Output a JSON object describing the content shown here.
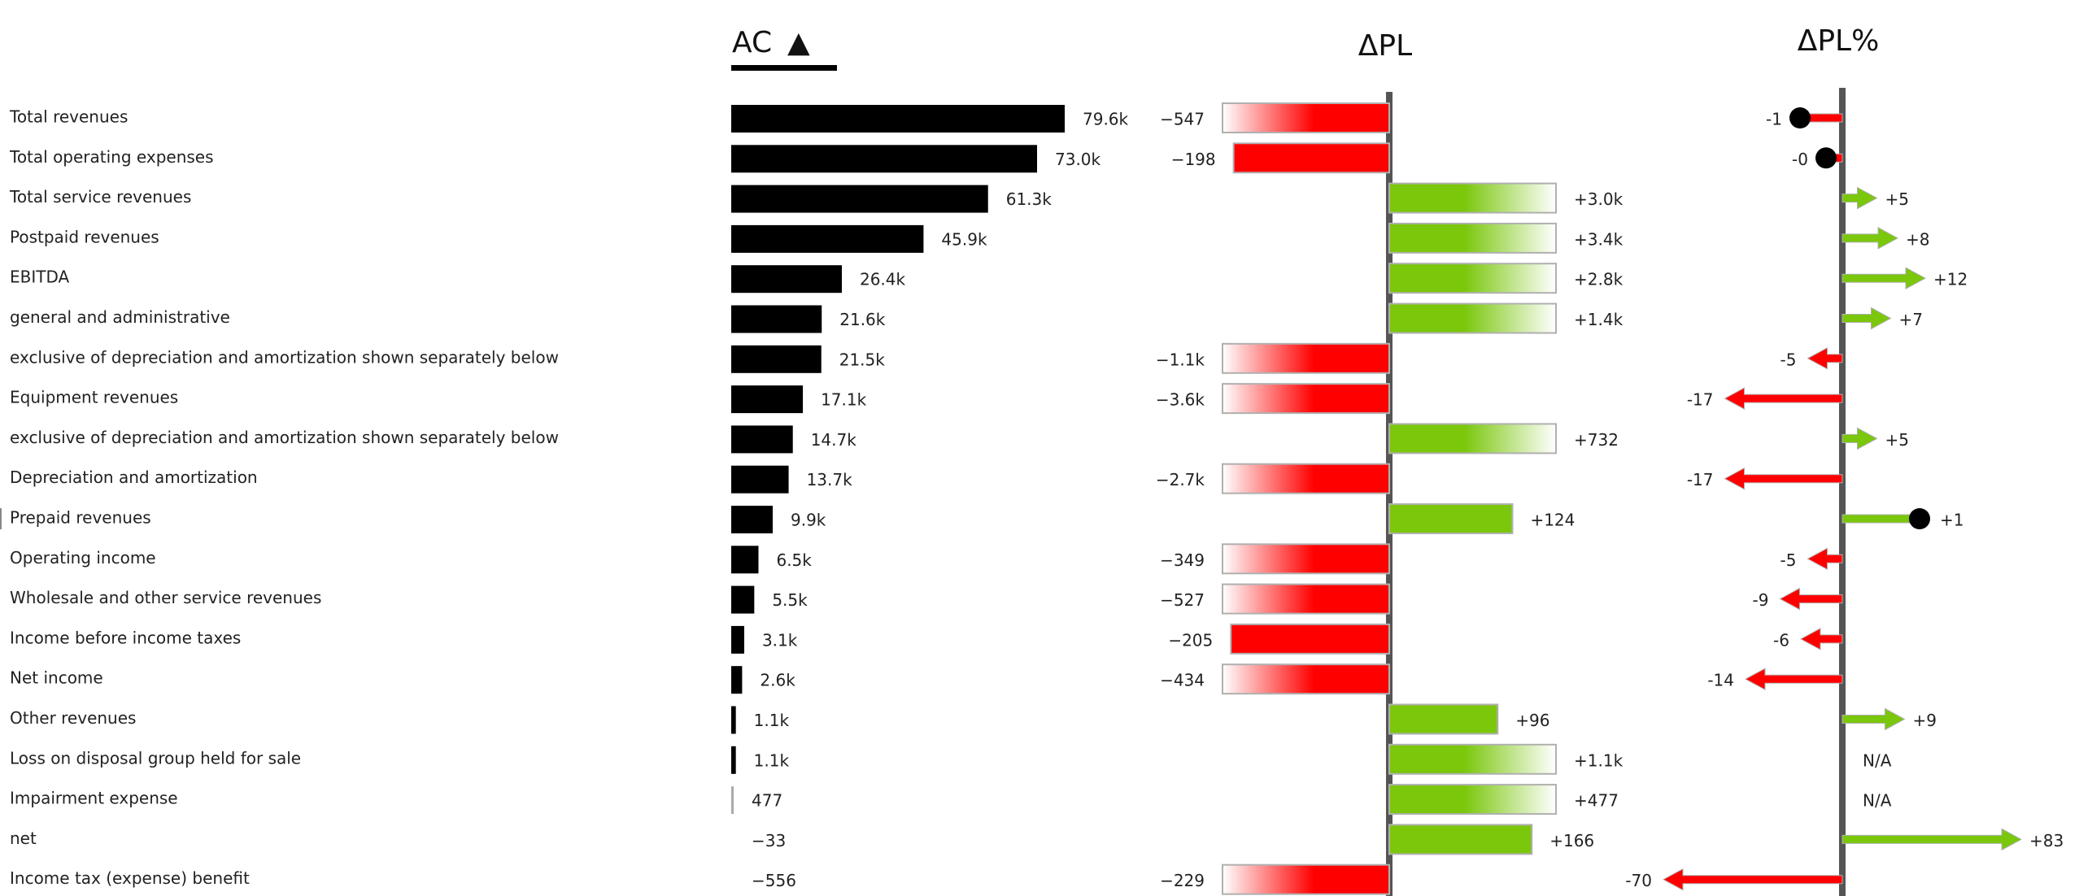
{
  "chart_data": {
    "type": "bar",
    "columns": [
      "AC",
      "ΔPL",
      "ΔPL%"
    ],
    "categories": [
      "Total revenues",
      "Total operating expenses",
      "Total service revenues",
      "Postpaid revenues",
      "EBITDA",
      "general and administrative",
      "exclusive of depreciation and amortization shown separately below",
      "Equipment revenues",
      "exclusive of depreciation and amortization shown separately below",
      "Depreciation and amortization",
      "Prepaid revenues",
      "Operating income",
      "Wholesale and other service revenues",
      "Income before income taxes",
      "Net income",
      "Other revenues",
      "Loss on disposal group held for sale",
      "Impairment expense",
      "net",
      "Income tax (expense) benefit"
    ],
    "series": [
      {
        "name": "AC",
        "values": [
          79600,
          73000,
          61300,
          45900,
          26400,
          21600,
          21500,
          17100,
          14700,
          13700,
          9900,
          6500,
          5500,
          3100,
          2600,
          1100,
          1100,
          477,
          -33,
          -556
        ],
        "labels": [
          "79.6k",
          "73.0k",
          "61.3k",
          "45.9k",
          "26.4k",
          "21.6k",
          "21.5k",
          "17.1k",
          "14.7k",
          "13.7k",
          "9.9k",
          "6.5k",
          "5.5k",
          "3.1k",
          "2.6k",
          "1.1k",
          "1.1k",
          "477",
          "−33",
          "−556"
        ]
      },
      {
        "name": "ΔPL",
        "values": [
          -547,
          -198,
          3000,
          3400,
          2800,
          1400,
          -1100,
          -3600,
          732,
          -2700,
          124,
          -349,
          -527,
          -205,
          -434,
          96,
          1100,
          477,
          166,
          -229
        ],
        "labels": [
          "−547",
          "−198",
          "+3.0k",
          "+3.4k",
          "+2.8k",
          "+1.4k",
          "−1.1k",
          "−3.6k",
          "+732",
          "−2.7k",
          "+124",
          "−349",
          "−527",
          "−205",
          "−434",
          "+96",
          "+1.1k",
          "+477",
          "+166",
          "−229"
        ],
        "truncated": [
          true,
          false,
          true,
          true,
          true,
          true,
          true,
          true,
          true,
          true,
          false,
          true,
          true,
          false,
          true,
          false,
          true,
          true,
          false,
          true
        ]
      },
      {
        "name": "ΔPL%",
        "values": [
          -1,
          -0.3,
          5,
          8,
          12,
          7,
          -5,
          -17,
          5,
          -17,
          1,
          -5,
          -9,
          -6,
          -14,
          9,
          null,
          null,
          83,
          -70
        ],
        "labels": [
          "-1",
          "-0",
          "+5",
          "+8",
          "+12",
          "+7",
          "-5",
          "-17",
          "+5",
          "-17",
          "+1",
          "-5",
          "-9",
          "-6",
          "-14",
          "+9",
          "N/A",
          "N/A",
          "+83",
          "-70"
        ],
        "style": [
          "pin",
          "pin",
          "arrow",
          "arrow",
          "arrow",
          "arrow",
          "arrow",
          "arrow",
          "arrow",
          "arrow",
          "pin",
          "arrow",
          "arrow",
          "arrow",
          "arrow",
          "arrow",
          "na",
          "na",
          "arrow",
          "arrow"
        ]
      }
    ],
    "sort_indicator": "▲",
    "colors": {
      "positive": "#7ac70c",
      "negative": "#ff0000",
      "ac": "#000000",
      "axis": "#555555",
      "outline": "#b0b0b0"
    }
  }
}
